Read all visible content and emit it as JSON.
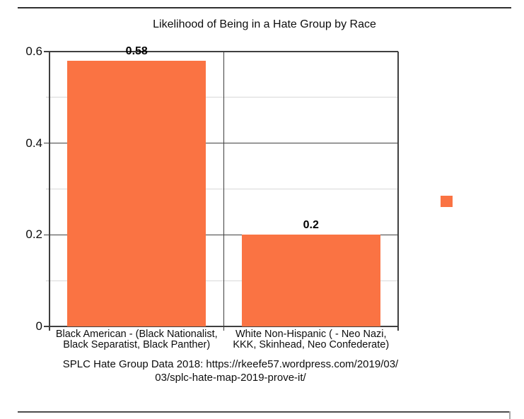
{
  "page": {
    "top_divider_color": "#2f2f2f",
    "bottom_divider_color": "#4c4c4c",
    "background": "#ffffff"
  },
  "chart_data": {
    "type": "bar",
    "title": "Likelihood of Being in a Hate Group by Race",
    "categories": [
      "Black American - (Black Nationalist, Black Separatist, Black Panther)",
      "White Non-Hispanic ( - Neo Nazi, KKK, Skinhead, Neo Confederate)"
    ],
    "category_label_lines": [
      [
        "Black American - (Black Nationalist,",
        "Black Separatist, Black Panther)"
      ],
      [
        "White Non-Hispanic ( - Neo Nazi,",
        "KKK, Skinhead, Neo Confederate)"
      ]
    ],
    "values": [
      0.58,
      0.2
    ],
    "value_labels": [
      "0.58",
      "0.2"
    ],
    "xlabel": "",
    "ylabel": "",
    "ylim": [
      0,
      0.6
    ],
    "y_major_ticks": [
      0,
      0.2,
      0.4,
      0.6
    ],
    "y_major_tick_labels": [
      "0",
      "0.2",
      "0.4",
      "0.6"
    ],
    "y_minor_ticks": [
      0.1,
      0.3,
      0.5
    ],
    "grid": "major dark lines every 0.2, minor light lines every 0.1",
    "legend_position": "right",
    "bar_color": "#fa7343",
    "major_grid_color": "#3f3f3f",
    "minor_grid_color": "#d8d8d8",
    "caption": "SPLC Hate Group Data 2018: https://rkeefe57.wordpress.com/2019/03/03/splc-hate-map-2019-prove-it/",
    "caption_lines": [
      "SPLC Hate Group Data 2018: https://rkeefe57.wordpress.com/2019/03/",
      "03/splc-hate-map-2019-prove-it/"
    ]
  }
}
